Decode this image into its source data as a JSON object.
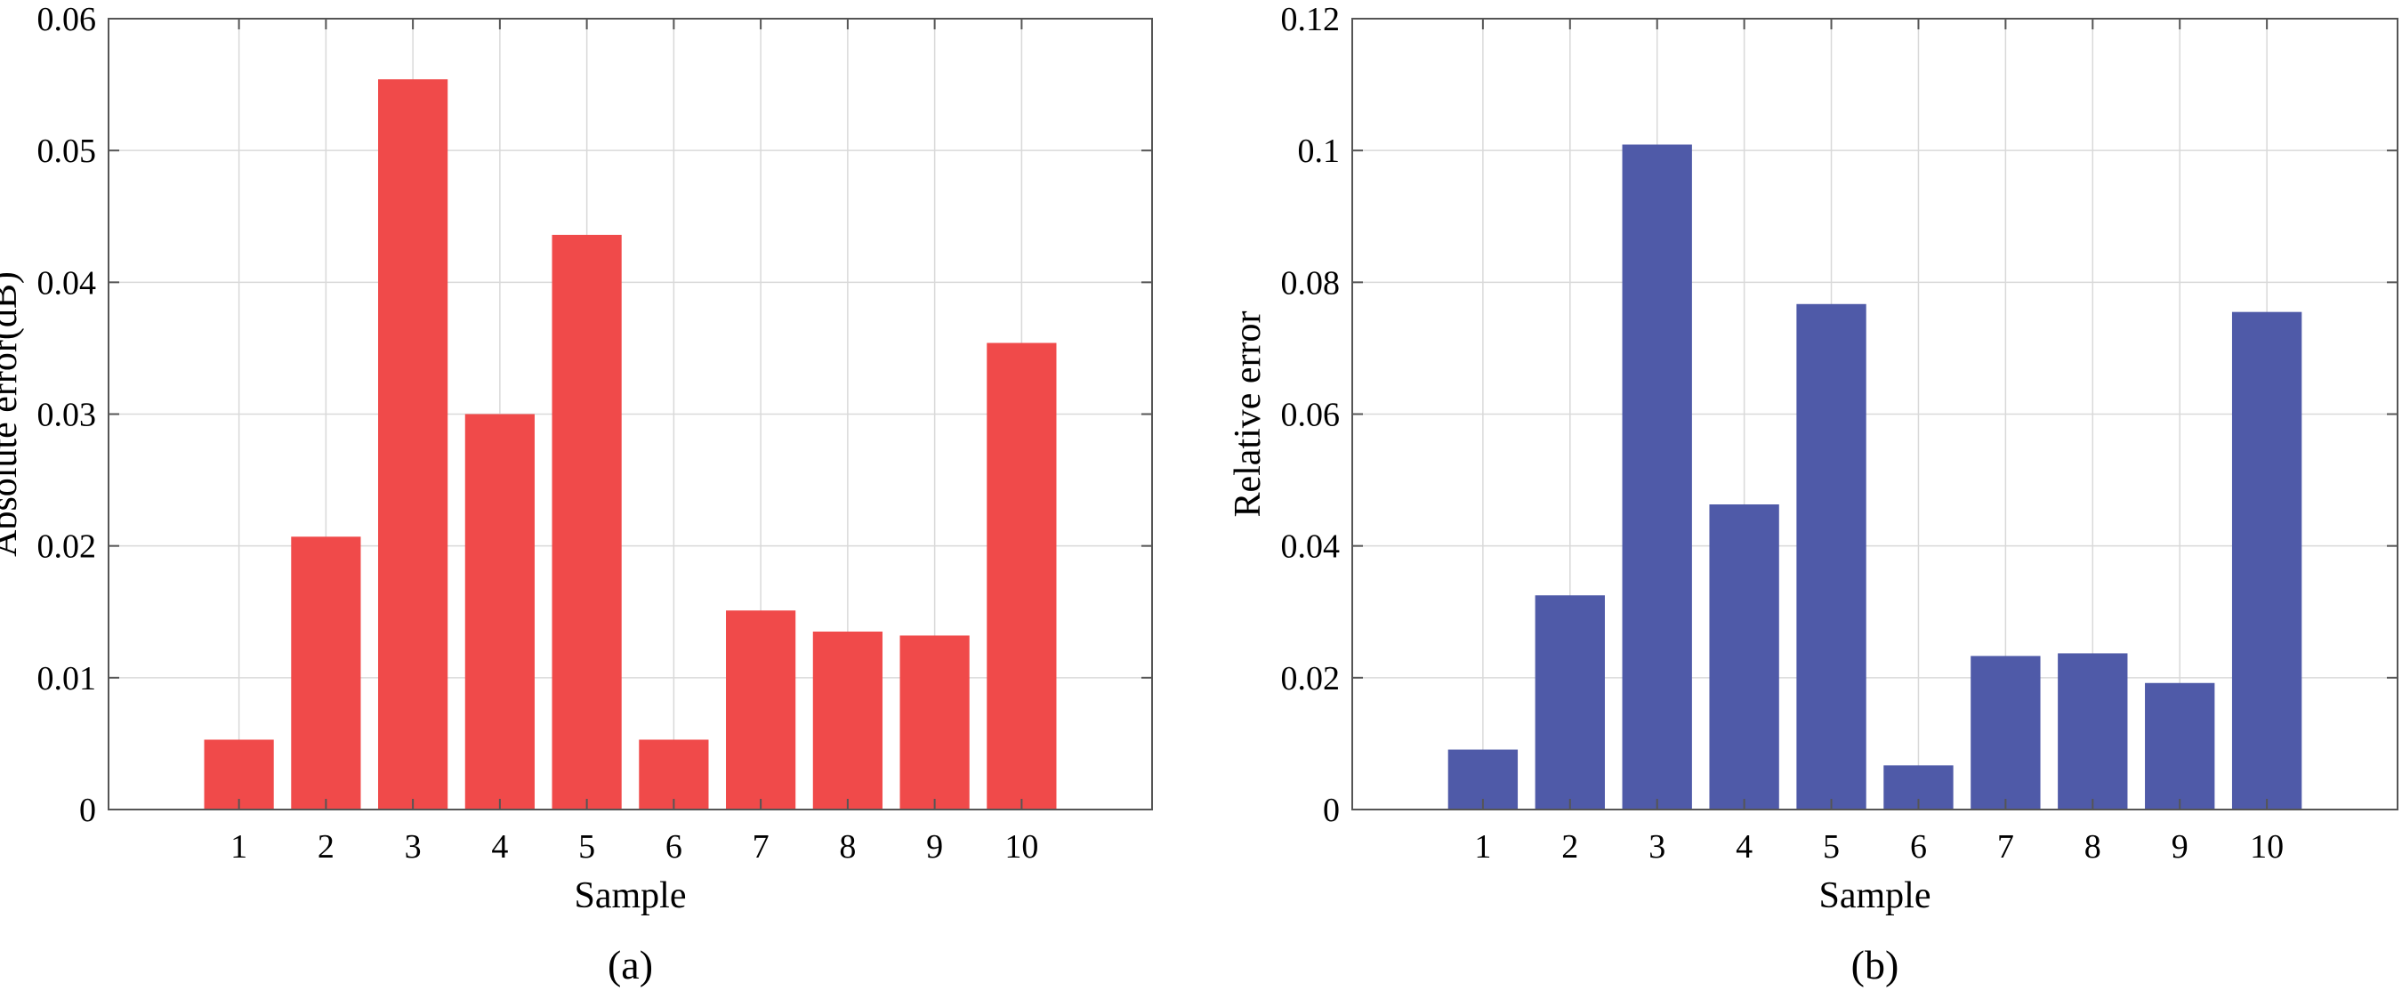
{
  "chart_data": [
    {
      "type": "bar",
      "caption": "(a)",
      "xlabel": "Sample",
      "ylabel": "Absolute error(dB)",
      "categories": [
        "1",
        "2",
        "3",
        "4",
        "5",
        "6",
        "7",
        "8",
        "9",
        "10"
      ],
      "values": [
        0.0053,
        0.0207,
        0.0554,
        0.03,
        0.0436,
        0.0053,
        0.0151,
        0.0135,
        0.0132,
        0.0354
      ],
      "ylim": [
        0,
        0.06
      ],
      "yticks": [
        "0",
        "0.01",
        "0.02",
        "0.03",
        "0.04",
        "0.05",
        "0.06"
      ],
      "grid": true,
      "color": "#f04a4a"
    },
    {
      "type": "bar",
      "caption": "(b)",
      "xlabel": "Sample",
      "ylabel": "Relative error",
      "categories": [
        "1",
        "2",
        "3",
        "4",
        "5",
        "6",
        "7",
        "8",
        "9",
        "10"
      ],
      "values": [
        0.0091,
        0.0325,
        0.1009,
        0.0463,
        0.0767,
        0.0067,
        0.0233,
        0.0237,
        0.0192,
        0.0755
      ],
      "ylim": [
        0,
        0.12
      ],
      "yticks": [
        "0",
        "0.02",
        "0.04",
        "0.06",
        "0.08",
        "0.1",
        "0.12"
      ],
      "grid": true,
      "color": "#4f5aa8"
    }
  ]
}
